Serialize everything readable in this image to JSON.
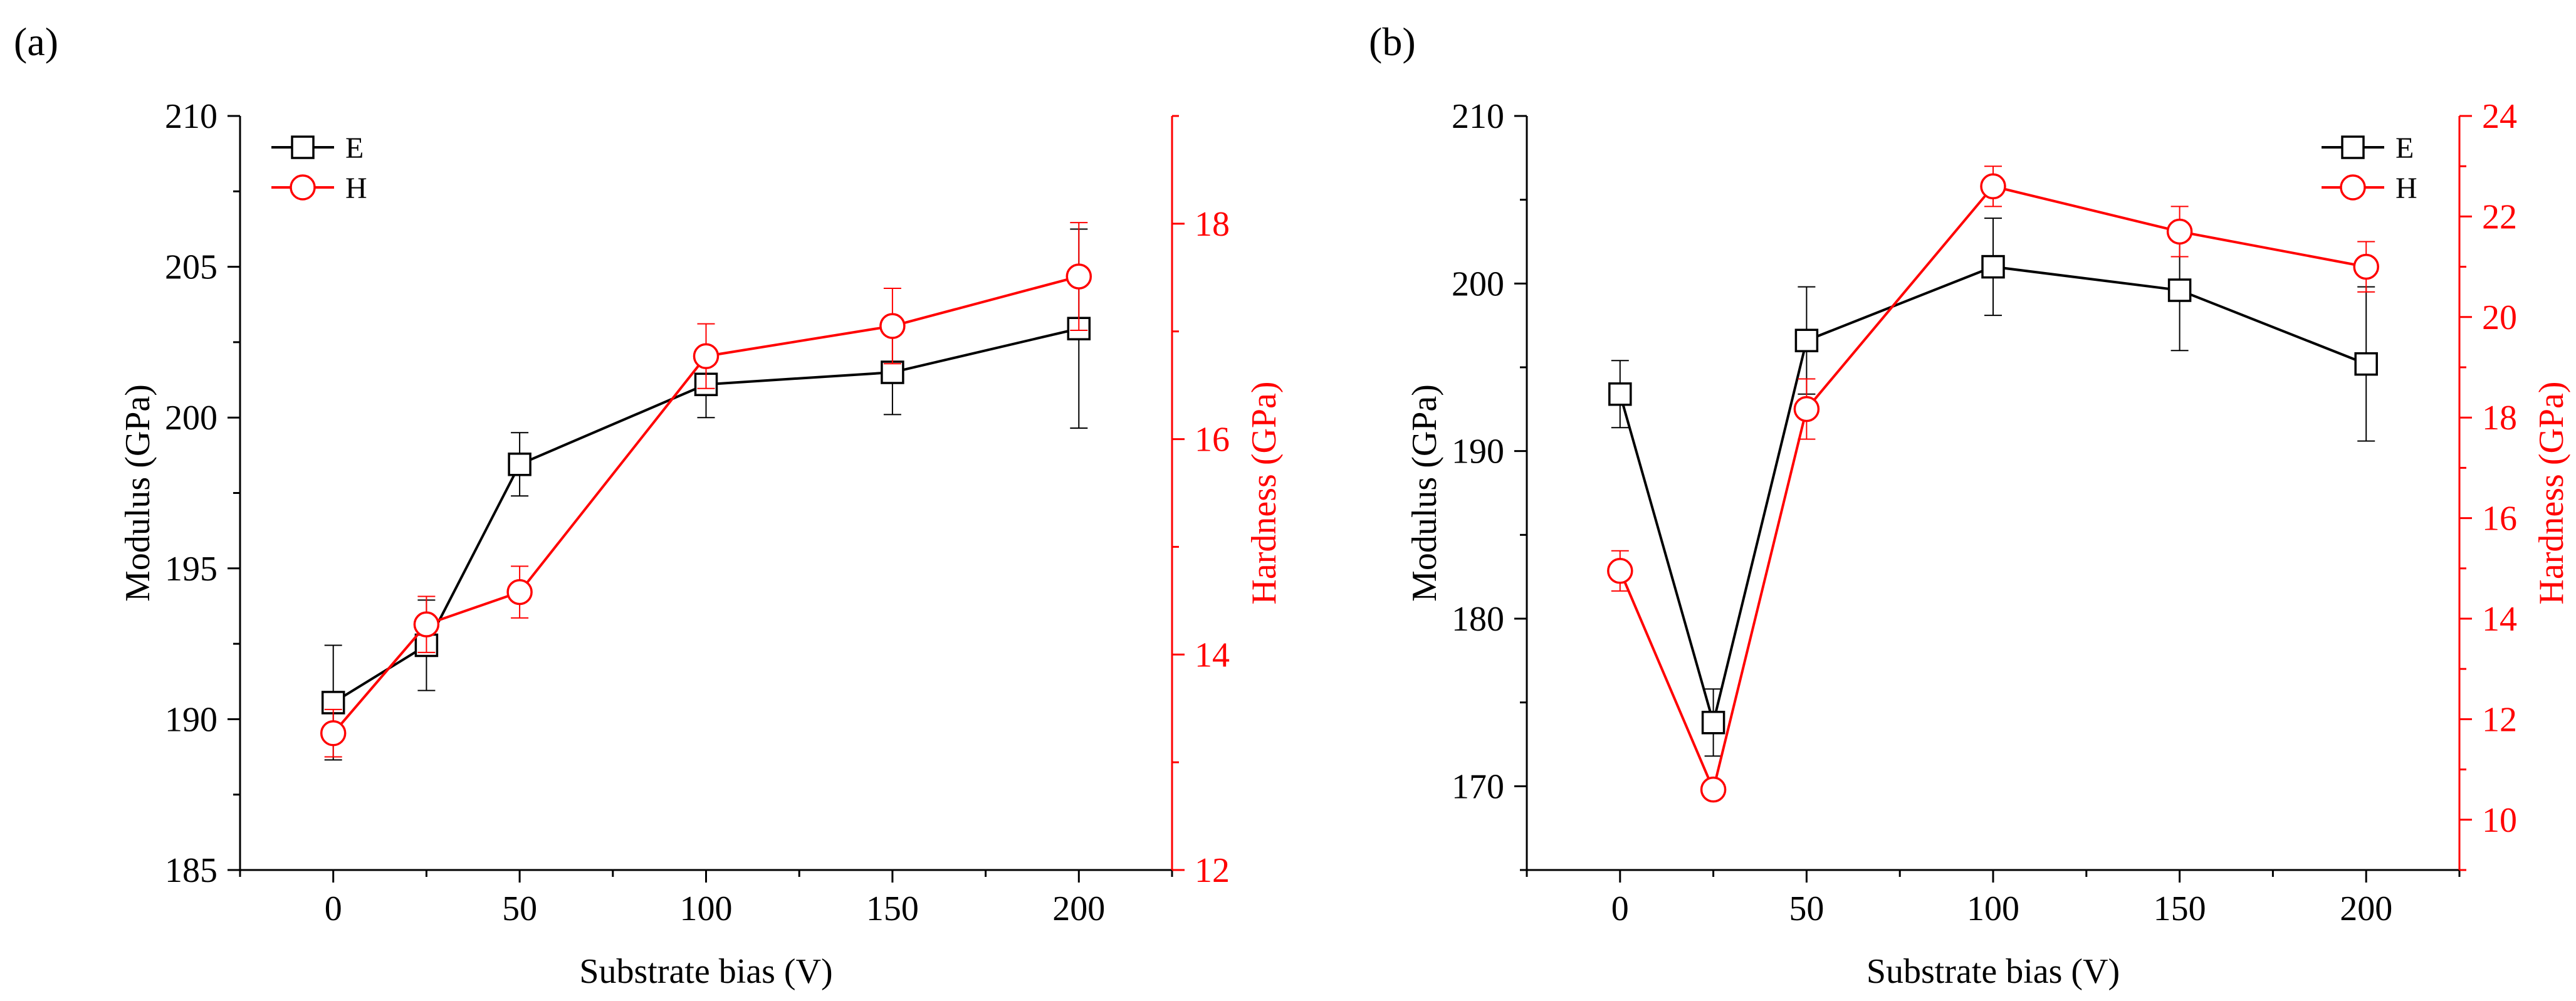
{
  "colors": {
    "modulus": "#000000",
    "hardness": "#ff0000"
  },
  "chart_data": [
    {
      "panel_label": "(a)",
      "type": "line",
      "xlabel": "Substrate bias (V)",
      "x_ticks": [
        0,
        50,
        100,
        150,
        200
      ],
      "xlim": [
        -25,
        225
      ],
      "ylabel_left": "Modulus (GPa)",
      "ylim_left": [
        185,
        210
      ],
      "y_ticks_left": [
        185,
        190,
        195,
        200,
        205,
        210
      ],
      "ylabel_right": "Hardness (GPa)",
      "ylim_right": [
        12,
        19
      ],
      "y_ticks_right": [
        12,
        14,
        16,
        18
      ],
      "legend_position": "top-left",
      "series": [
        {
          "name": "E",
          "axis": "left",
          "marker": "square",
          "color": "#000000",
          "x": [
            0,
            25,
            50,
            100,
            150,
            200
          ],
          "y": [
            190.55,
            192.45,
            198.45,
            201.1,
            201.5,
            202.95
          ],
          "err": [
            1.9,
            1.5,
            1.05,
            1.1,
            1.4,
            3.3
          ]
        },
        {
          "name": "H",
          "axis": "right",
          "marker": "circle",
          "color": "#ff0000",
          "x": [
            0,
            25,
            50,
            100,
            150,
            200
          ],
          "y": [
            13.27,
            14.28,
            14.58,
            16.77,
            17.05,
            17.51
          ],
          "err": [
            0.22,
            0.26,
            0.24,
            0.3,
            0.35,
            0.5
          ]
        }
      ]
    },
    {
      "panel_label": "(b)",
      "type": "line",
      "xlabel": "Substrate bias (V)",
      "x_ticks": [
        0,
        50,
        100,
        150,
        200
      ],
      "xlim": [
        -25,
        225
      ],
      "ylabel_left": "Modulus (GPa)",
      "ylim_left": [
        165,
        210
      ],
      "y_ticks_left": [
        170,
        180,
        190,
        200,
        210
      ],
      "ylabel_right": "Hardness (GPa)",
      "ylim_right": [
        9,
        24
      ],
      "y_ticks_right": [
        10,
        12,
        14,
        16,
        18,
        20,
        22,
        24
      ],
      "legend_position": "top-right",
      "series": [
        {
          "name": "E",
          "axis": "left",
          "marker": "square",
          "color": "#000000",
          "x": [
            0,
            25,
            50,
            100,
            150,
            200
          ],
          "y": [
            193.4,
            173.8,
            196.6,
            201.0,
            199.6,
            195.2
          ],
          "err": [
            2.0,
            2.0,
            3.2,
            2.9,
            3.6,
            4.6
          ]
        },
        {
          "name": "H",
          "axis": "right",
          "marker": "circle",
          "color": "#ff0000",
          "x": [
            0,
            25,
            50,
            100,
            150,
            200
          ],
          "y": [
            14.95,
            10.6,
            18.17,
            22.6,
            21.7,
            21.0
          ],
          "err": [
            0.4,
            0.15,
            0.6,
            0.4,
            0.5,
            0.5
          ]
        }
      ]
    }
  ]
}
